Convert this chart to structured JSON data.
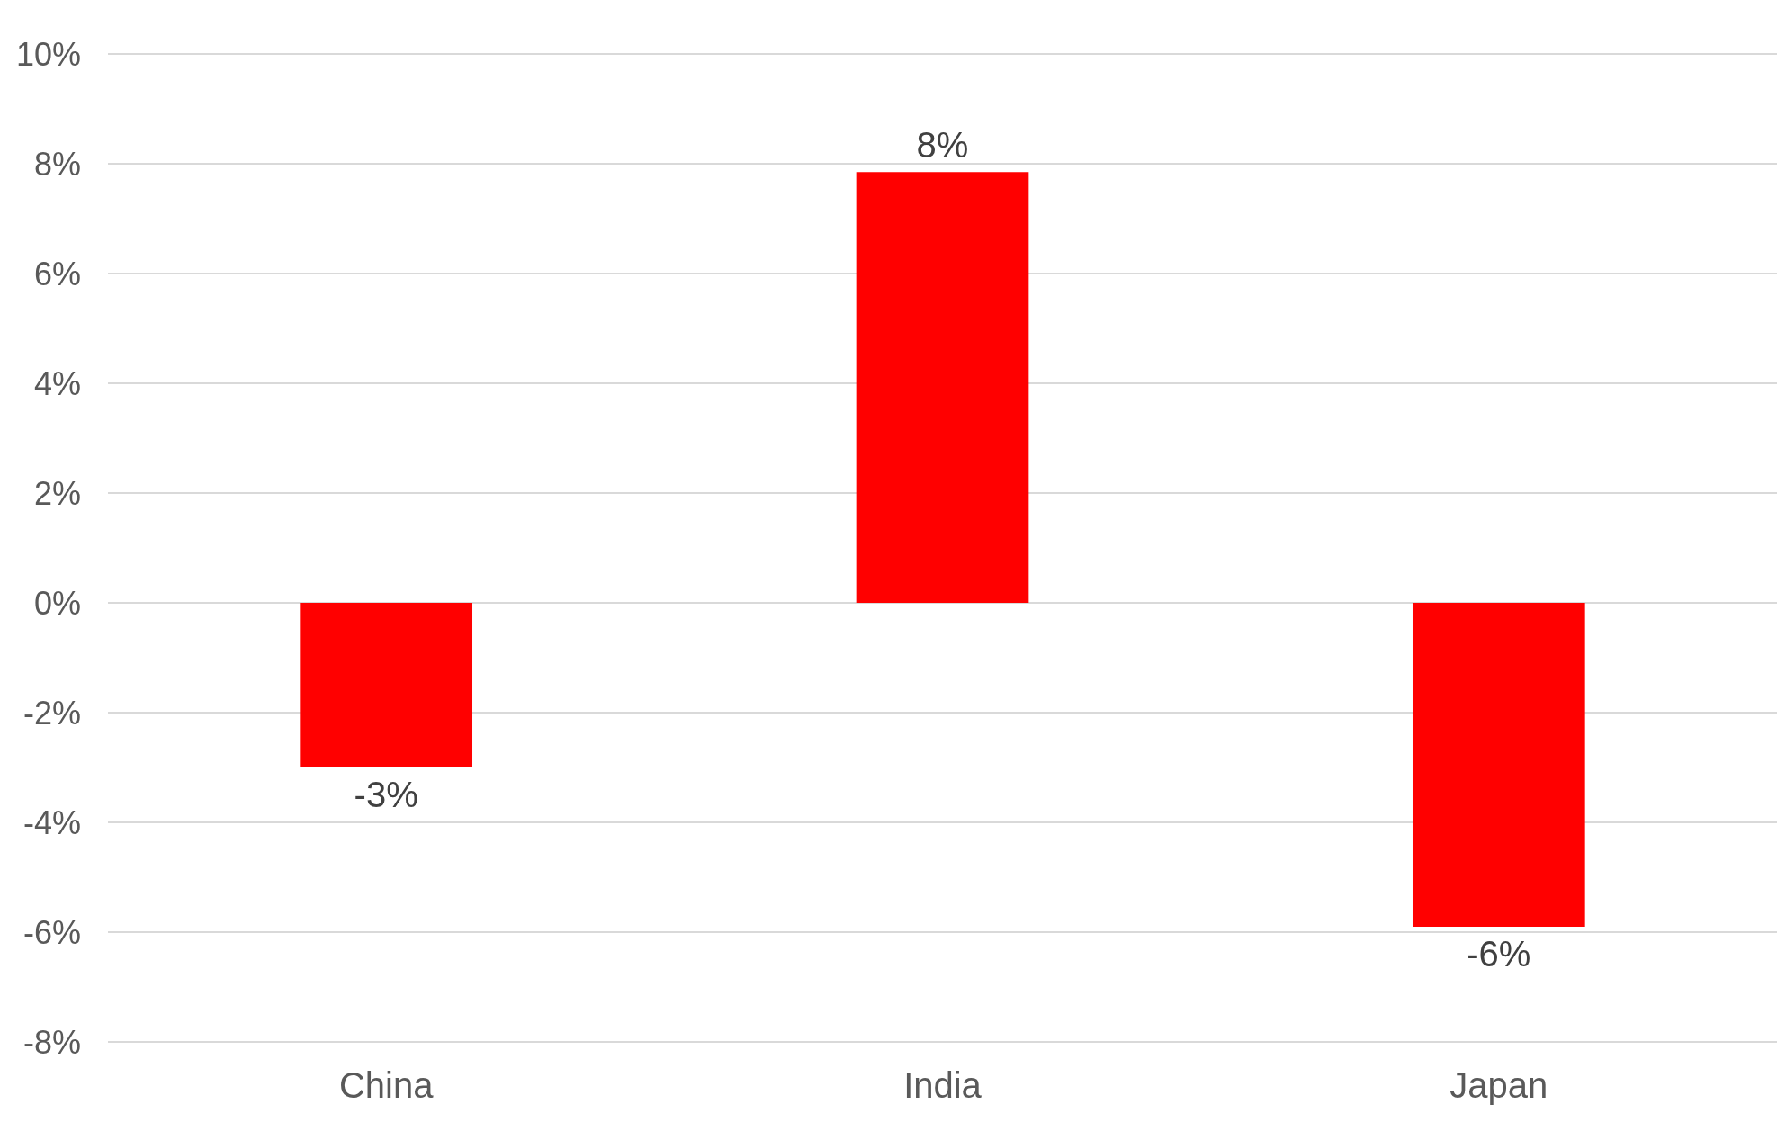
{
  "chart_data": {
    "type": "bar",
    "categories": [
      "China",
      "India",
      "Japan"
    ],
    "series": [
      {
        "color": "#ff0000",
        "values": [
          -3,
          7.85,
          -5.9
        ],
        "value_labels": [
          "-3%",
          "8%",
          "-6%"
        ]
      }
    ],
    "ylim": [
      -8,
      10
    ],
    "yticks": [
      {
        "value": -8,
        "label": "-8%"
      },
      {
        "value": -6,
        "label": "-6%"
      },
      {
        "value": -4,
        "label": "-4%"
      },
      {
        "value": -2,
        "label": "-2%"
      },
      {
        "value": 0,
        "label": "0%"
      },
      {
        "value": 2,
        "label": "2%"
      },
      {
        "value": 4,
        "label": "4%"
      },
      {
        "value": 6,
        "label": "6%"
      },
      {
        "value": 8,
        "label": "8%"
      },
      {
        "value": 10,
        "label": "10%"
      }
    ],
    "grid": "y"
  }
}
